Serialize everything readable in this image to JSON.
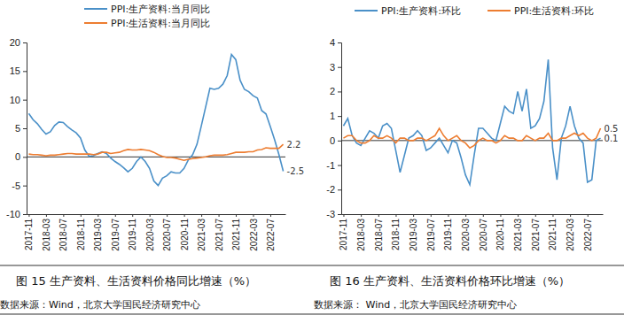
{
  "chart_data": [
    {
      "type": "line",
      "title": "图 15 生产资料、生活资料价格同比增速（%）",
      "source": "数据来源：Wind，北京大学国民经济研究中心",
      "categories": [
        "2017-11",
        null,
        null,
        null,
        "2018-03",
        null,
        null,
        null,
        "2018-07",
        null,
        null,
        null,
        "2018-11",
        null,
        null,
        null,
        "2019-03",
        null,
        null,
        null,
        "2019-07",
        null,
        null,
        null,
        "2019-11",
        null,
        null,
        null,
        "2020-03",
        null,
        null,
        null,
        "2020-07",
        null,
        null,
        null,
        "2020-11",
        null,
        null,
        null,
        "2021-03",
        null,
        null,
        null,
        "2021-07",
        null,
        null,
        null,
        "2021-11",
        null,
        null,
        null,
        "2022-03",
        null,
        null,
        null,
        "2022-07",
        null,
        null,
        null
      ],
      "series": [
        {
          "name": "PPI:生产资料:当月同比",
          "color": "#4a90c8",
          "values": [
            7.6,
            6.5,
            5.8,
            4.8,
            4.0,
            4.4,
            5.5,
            6.1,
            6.0,
            5.3,
            4.7,
            4.2,
            3.3,
            1.2,
            0.1,
            0.2,
            0.6,
            0.9,
            0.6,
            -0.2,
            -0.8,
            -1.3,
            -1.9,
            -2.6,
            -2.0,
            -0.8,
            0.0,
            -0.8,
            -2.0,
            -4.2,
            -5.0,
            -3.7,
            -3.3,
            -2.6,
            -2.8,
            -2.8,
            -2.0,
            -0.5,
            0.4,
            2.2,
            5.4,
            8.7,
            12.0,
            11.8,
            12.0,
            12.7,
            14.2,
            17.9,
            17.0,
            13.4,
            11.8,
            11.4,
            10.7,
            10.3,
            8.1,
            7.5,
            5.3,
            3.0,
            0.4,
            -2.5
          ]
        },
        {
          "name": "PPI:生活资料:当月同比",
          "color": "#ed7d31",
          "values": [
            0.5,
            0.4,
            0.4,
            0.3,
            0.2,
            0.3,
            0.3,
            0.4,
            0.5,
            0.6,
            0.6,
            0.5,
            0.5,
            0.5,
            0.5,
            0.4,
            0.5,
            0.8,
            0.8,
            0.6,
            0.7,
            0.8,
            1.1,
            1.3,
            1.2,
            1.2,
            1.3,
            1.2,
            1.1,
            0.8,
            0.4,
            0.1,
            -0.1,
            -0.1,
            -0.2,
            -0.4,
            -0.6,
            -0.4,
            -0.3,
            -0.2,
            -0.1,
            0.0,
            0.2,
            0.3,
            0.3,
            0.3,
            0.4,
            0.6,
            0.8,
            0.8,
            0.8,
            0.9,
            0.9,
            1.2,
            1.3,
            1.6,
            1.5,
            1.5,
            1.5,
            2.2
          ]
        }
      ],
      "annotations": [
        {
          "text": "2.2",
          "value": 2.2
        },
        {
          "text": "-2.5",
          "value": -2.5
        }
      ],
      "ylim": [
        -10,
        20
      ],
      "yticks": [
        -10,
        -5,
        0,
        5,
        10,
        15,
        20
      ],
      "grid": false,
      "legend": "top"
    },
    {
      "type": "line",
      "title": "图 16 生产资料、生活资料价格环比增速（%）",
      "source": "数据来源： Wind，北京大学国民经济研究中心",
      "categories": [
        "2017-11",
        null,
        null,
        null,
        "2018-03",
        null,
        null,
        null,
        "2018-07",
        null,
        null,
        null,
        "2018-11",
        null,
        null,
        null,
        "2019-03",
        null,
        null,
        null,
        "2019-07",
        null,
        null,
        null,
        "2019-11",
        null,
        null,
        null,
        "2020-03",
        null,
        null,
        null,
        "2020-07",
        null,
        null,
        null,
        "2020-11",
        null,
        null,
        null,
        "2021-03",
        null,
        null,
        null,
        "2021-07",
        null,
        null,
        null,
        "2021-11",
        null,
        null,
        null,
        "2022-03",
        null,
        null,
        null,
        "2022-07",
        null,
        null,
        null
      ],
      "series": [
        {
          "name": "PPI:生产资料:环比",
          "color": "#4a90c8",
          "values": [
            0.6,
            0.9,
            0.2,
            -0.1,
            -0.2,
            0.1,
            0.4,
            0.3,
            0.1,
            0.6,
            0.7,
            0.5,
            -0.4,
            -1.3,
            -0.6,
            0.1,
            0.2,
            0.4,
            0.2,
            -0.4,
            -0.3,
            -0.1,
            0.1,
            -0.2,
            -0.5,
            0.0,
            -0.1,
            -0.7,
            -1.4,
            -1.8,
            -0.6,
            0.5,
            0.5,
            0.3,
            0.1,
            0.0,
            0.7,
            1.4,
            1.2,
            1.1,
            2.0,
            1.2,
            2.1,
            0.5,
            0.6,
            0.9,
            1.6,
            3.3,
            -0.3,
            -1.6,
            0.1,
            0.6,
            1.4,
            0.6,
            0.1,
            -0.1,
            -1.7,
            -1.6,
            0.0,
            0.1
          ]
        },
        {
          "name": "PPI:生活资料:环比",
          "color": "#ed7d31",
          "values": [
            0.1,
            0.2,
            0.2,
            0.0,
            -0.1,
            -0.1,
            0.0,
            0.2,
            0.1,
            0.1,
            0.2,
            0.1,
            -0.1,
            0.1,
            0.1,
            0.0,
            0.0,
            0.1,
            0.1,
            0.0,
            0.1,
            0.2,
            0.5,
            0.2,
            0.0,
            0.1,
            0.2,
            0.0,
            -0.1,
            -0.3,
            -0.2,
            0.0,
            0.1,
            0.0,
            0.0,
            -0.1,
            0.0,
            0.2,
            0.1,
            0.1,
            0.0,
            0.0,
            0.2,
            0.1,
            0.0,
            0.1,
            0.1,
            0.3,
            0.0,
            0.0,
            0.1,
            0.1,
            0.2,
            0.3,
            0.2,
            0.3,
            0.1,
            0.0,
            0.1,
            0.5
          ]
        }
      ],
      "annotations": [
        {
          "text": "0.5",
          "value": 0.5
        },
        {
          "text": "0.1",
          "value": 0.1
        }
      ],
      "ylim": [
        -3,
        4
      ],
      "yticks": [
        -3,
        -2,
        -1,
        0,
        1,
        2,
        3,
        4
      ],
      "grid": false,
      "legend": "top"
    }
  ]
}
